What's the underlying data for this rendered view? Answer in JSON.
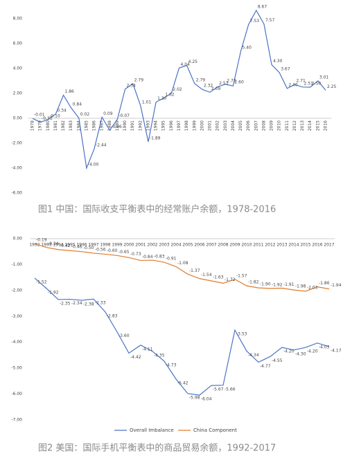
{
  "chart_data": [
    {
      "type": "line",
      "title": "图1 中国：国际收支平衡表中的经常账户余额，1978-2016",
      "categories": [
        "1978",
        "1979",
        "1980",
        "1981",
        "1982",
        "1983",
        "1984",
        "1985",
        "1986",
        "1987",
        "1988",
        "1989",
        "1990",
        "1991",
        "1992",
        "1993",
        "1994",
        "1995",
        "1996",
        "1997",
        "1998",
        "1999",
        "2000",
        "2001",
        "2002",
        "2003",
        "2004",
        "2005",
        "2006",
        "2007",
        "2008",
        "2009",
        "2010",
        "2011",
        "2012",
        "2013",
        "2014",
        "2015",
        "2016"
      ],
      "series": [
        {
          "color": "#4a72c4",
          "values": [
            -0.01,
            -0.31,
            -0.1,
            0.34,
            1.86,
            0.84,
            0.02,
            -4.0,
            -2.44,
            0.09,
            -0.96,
            -0.07,
            2.34,
            2.79,
            1.01,
            -1.89,
            1.3,
            1.62,
            2.02,
            4.04,
            4.25,
            2.79,
            2.32,
            2.09,
            2.53,
            2.73,
            2.6,
            5.4,
            7.53,
            8.67,
            7.57,
            4.3,
            3.67,
            2.4,
            2.71,
            2.51,
            2.5,
            3.01,
            2.25
          ],
          "value_labels": [
            "-0.01",
            "-0.31",
            "-0.10",
            "0.34",
            "1.86",
            "0.84",
            "0.02",
            "-4.00",
            "-2.44",
            "0.09",
            "-0.96",
            "-0.07",
            "2.34",
            "2.79",
            "1.01",
            "-1.89",
            "1.30",
            "1.62",
            "2.02",
            "4.04",
            "4.25",
            "2.79",
            "2.32",
            "2.09",
            "2.53",
            "2.73",
            "2.60",
            "5.40",
            "7.53",
            "8.67",
            "7.57",
            "4.30",
            "3.67",
            "2.40",
            "2.71",
            "2.51",
            "2.50",
            "3.01",
            "2.25"
          ]
        }
      ],
      "ylim": [
        -6,
        9
      ],
      "yticks": [
        {
          "value": -6,
          "label": "-6.00"
        },
        {
          "value": -4,
          "label": "-4.00"
        },
        {
          "value": -2,
          "label": "-2.00"
        },
        {
          "value": 0,
          "label": "0.00"
        },
        {
          "value": 2,
          "label": "2.00"
        },
        {
          "value": 4,
          "label": "4.00"
        },
        {
          "value": 6,
          "label": "6.00"
        },
        {
          "value": 8,
          "label": "8.00"
        }
      ],
      "grid": false
    },
    {
      "type": "line",
      "title": "图2 美国：国际手机平衡表中的商品贸易余额，1992-2017",
      "categories": [
        "1992",
        "1993",
        "1994",
        "1995",
        "1996",
        "1997",
        "1998",
        "1999",
        "2000",
        "2001",
        "2002",
        "2003",
        "2004",
        "2005",
        "2006",
        "2007",
        "2008",
        "2009",
        "2010",
        "2011",
        "2012",
        "2013",
        "2014",
        "2015",
        "2016",
        "2017"
      ],
      "series": [
        {
          "name": "Overall Imbalance",
          "color": "#4a72c4",
          "values": [
            -1.52,
            -1.92,
            -2.35,
            -2.34,
            -2.38,
            -2.33,
            -2.83,
            -3.6,
            -4.42,
            -4.11,
            -4.35,
            -4.73,
            -5.42,
            -5.98,
            -6.04,
            -5.67,
            -5.66,
            -3.53,
            -4.34,
            -4.77,
            -4.55,
            -4.2,
            -4.3,
            -4.2,
            -4.03,
            -4.17
          ],
          "value_labels": [
            "-1.52",
            "-1.92",
            "-2.35",
            "-2.34",
            "-2.38",
            "-2.33",
            "-2.83",
            "-3.60",
            "-4.42",
            "-4.11",
            "-4.35",
            "-4.73",
            "-5.42",
            "-5.98",
            "-6.04",
            "-5.67",
            "-5.66",
            "-3.53",
            "-4.34",
            "-4.77",
            "-4.55",
            "-4.20",
            "-4.30",
            "-4.20",
            "-4.03",
            "-4.17"
          ]
        },
        {
          "name": "China Component",
          "color": "#e07b2a",
          "values": [
            -0.19,
            -0.34,
            -0.42,
            -0.46,
            -0.5,
            -0.56,
            -0.6,
            -0.65,
            -0.73,
            -0.84,
            -0.83,
            -0.91,
            -1.08,
            -1.37,
            -1.54,
            -1.63,
            -1.72,
            -1.57,
            -1.82,
            -1.9,
            -1.92,
            -1.91,
            -1.98,
            -2.03,
            -1.86,
            -1.94
          ],
          "value_labels": [
            "-0.19",
            "-0.34",
            "-0.42",
            "-0.46",
            "-0.50",
            "-0.56",
            "-0.60",
            "-0.65",
            "-0.73",
            "-0.84",
            "-0.83",
            "-0.91",
            "-1.08",
            "-1.37",
            "-1.54",
            "-1.63",
            "-1.72",
            "-1.57",
            "-1.82",
            "-1.90",
            "-1.92",
            "-1.91",
            "-1.98",
            "-2.03",
            "-1.86",
            "-1.94"
          ]
        }
      ],
      "ylim": [
        -7,
        0
      ],
      "yticks": [
        {
          "value": -7,
          "label": "-7.00"
        },
        {
          "value": -6,
          "label": "-6.00"
        },
        {
          "value": -5,
          "label": "-5.00"
        },
        {
          "value": -4,
          "label": "-4.00"
        },
        {
          "value": -3,
          "label": "-3.00"
        },
        {
          "value": -2,
          "label": "-2.00"
        },
        {
          "value": -1,
          "label": "-1.00"
        },
        {
          "value": 0,
          "label": "0.00"
        }
      ],
      "grid": false,
      "legend": "bottom"
    }
  ]
}
